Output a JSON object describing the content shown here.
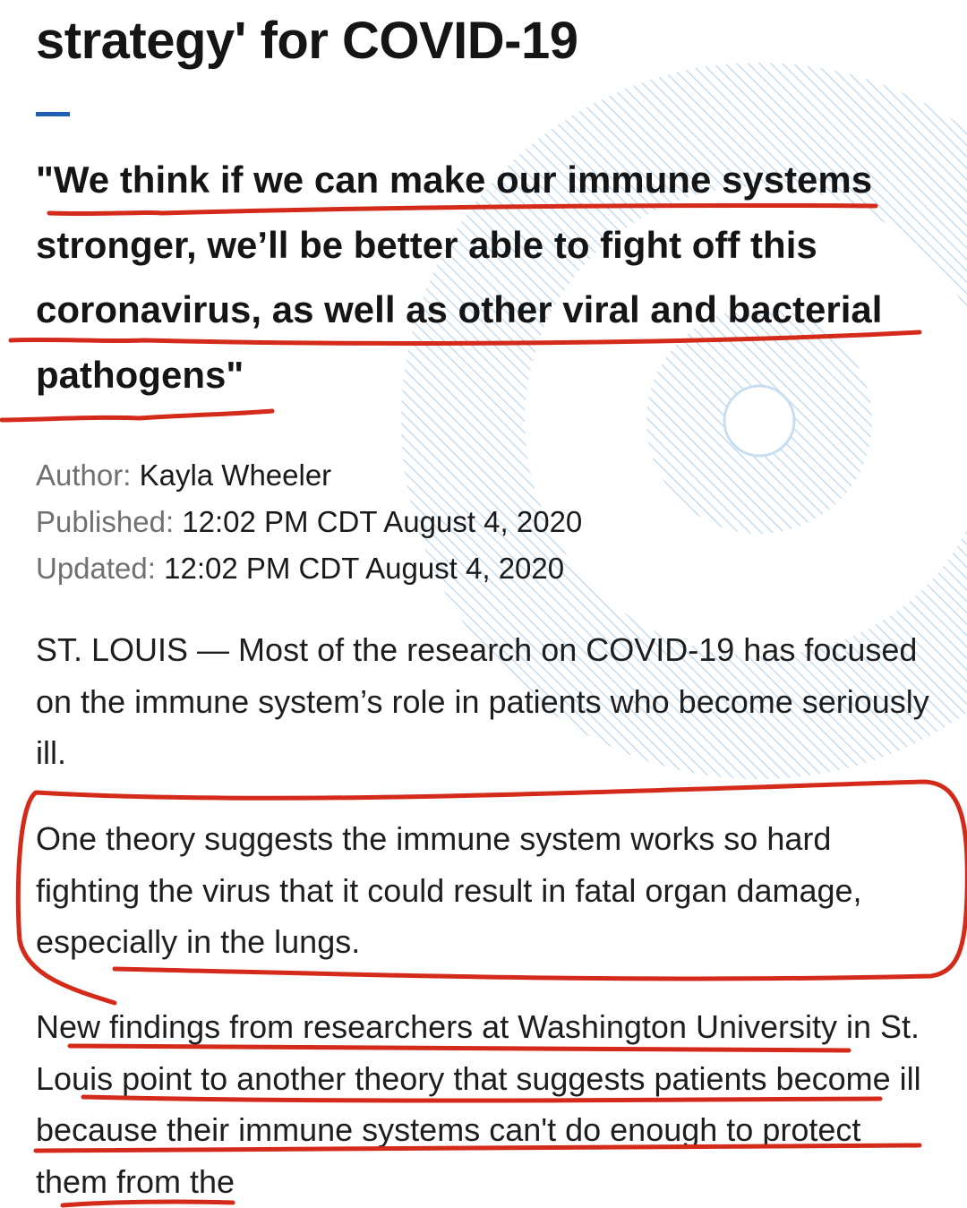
{
  "article": {
    "headline": "strategy' for COVID-19",
    "pull_quote": "\"We think if we can make our immune systems stronger, we’ll be better able to fight off this coronavirus, as well as other viral and bacterial pathogens\"",
    "byline": {
      "author_label": "Author:",
      "author": "Kayla Wheeler",
      "published_label": "Published:",
      "published": "12:02 PM CDT August 4, 2020",
      "updated_label": "Updated:",
      "updated": "12:02 PM CDT August 4, 2020"
    },
    "paragraphs": [
      "ST. LOUIS — Most of the research on COVID-19 has focused on the immune system’s role in patients who become seriously ill.",
      "One theory suggests the immune system works so hard fighting the virus that it could result in fatal organ damage, especially in the lungs.",
      "New findings from researchers at Washington University in St. Louis point to another theory that suggests patients become ill because their immune systems can't do enough to protect them from the"
    ]
  },
  "colors": {
    "annotation_red": "#d42a1a",
    "accent_blue": "#1f5fb3",
    "decor_blue": "#b9d6ee"
  }
}
